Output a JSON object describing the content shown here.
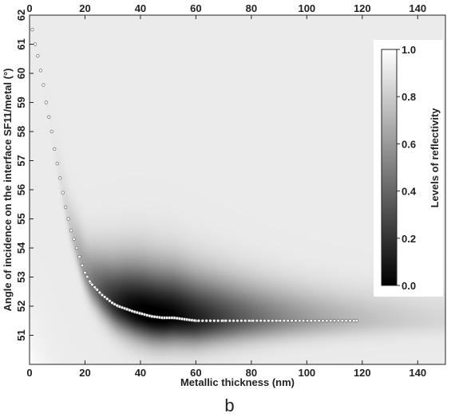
{
  "figure": {
    "panel_label": "b"
  },
  "chart_data": {
    "type": "heatmap",
    "xlabel": "Metallic thickness (nm)",
    "ylabel": "Angle of incidence on the interface SF11/metal (°)",
    "xlim": [
      0,
      150
    ],
    "ylim": [
      50,
      62
    ],
    "x_ticks": [
      "0",
      "20",
      "40",
      "60",
      "80",
      "100",
      "120",
      "140"
    ],
    "y_ticks": [
      "51",
      "52",
      "53",
      "54",
      "55",
      "56",
      "57",
      "58",
      "59",
      "60",
      "61",
      "62"
    ],
    "top_axis_ticks": [
      "0",
      "20",
      "40",
      "60",
      "80",
      "100",
      "120",
      "140"
    ],
    "colorbar": {
      "label": "Levels of reflectivity",
      "ticks": [
        "0.0",
        "0.2",
        "0.4",
        "0.6",
        "0.8",
        "1.0"
      ],
      "range": [
        0,
        1
      ],
      "colormap": "grayscale (black = 0, white = 1)"
    },
    "background_level": 0.92,
    "minimum_curve": {
      "description_marker": "white circle",
      "x": [
        1,
        2,
        3,
        4,
        5,
        6,
        7,
        8,
        9,
        10,
        11,
        12,
        13,
        14,
        15,
        16,
        17,
        18,
        19,
        20,
        22,
        24,
        26,
        28,
        30,
        32,
        35,
        38,
        40,
        44,
        48,
        52,
        56,
        60,
        70,
        80,
        90,
        100,
        110,
        118
      ],
      "y": [
        61.5,
        61.0,
        60.6,
        60.1,
        59.6,
        59.0,
        58.5,
        58.0,
        57.4,
        56.9,
        56.4,
        55.9,
        55.4,
        55.0,
        54.6,
        54.3,
        54.0,
        53.7,
        53.4,
        53.15,
        52.8,
        52.6,
        52.4,
        52.25,
        52.1,
        52.0,
        51.9,
        51.8,
        51.75,
        51.65,
        51.6,
        51.6,
        51.55,
        51.5,
        51.5,
        51.5,
        51.5,
        51.5,
        51.5,
        51.5
      ]
    }
  }
}
